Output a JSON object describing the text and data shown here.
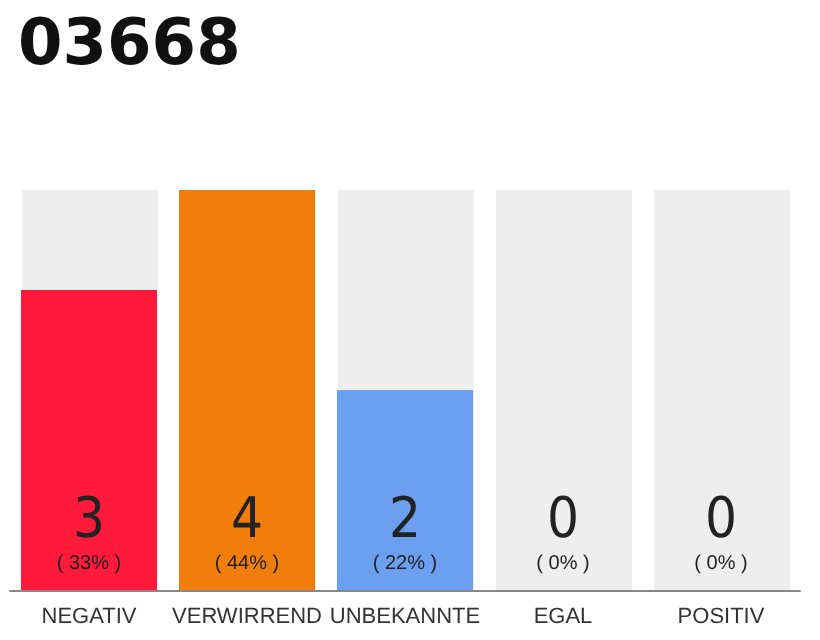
{
  "chart_data": {
    "type": "bar",
    "title": "03668",
    "categories": [
      "NEGATIV",
      "VERWIRREND",
      "UNBEKANNTE",
      "EGAL",
      "POSITIV"
    ],
    "values": [
      3,
      4,
      2,
      0,
      0
    ],
    "colors": [
      "#ff1a3c",
      "#f07d0c",
      "#6aa0ef",
      "#eeeeee",
      "#eeeeee"
    ],
    "tick_labels": "x",
    "grid": false,
    "value_labels": [
      "3\n( 33% )",
      "4\n( 44% )",
      "2\n( 22% )",
      "0\n( 0% )",
      "0\n( 0% )"
    ]
  }
}
